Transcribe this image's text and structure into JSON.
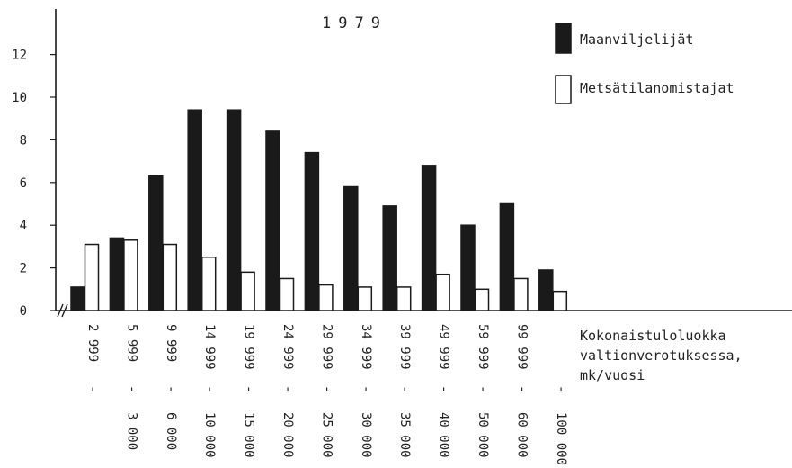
{
  "chart_data": {
    "type": "bar",
    "title": "1979",
    "ylim": [
      0,
      13
    ],
    "yticks": [
      0,
      2,
      4,
      6,
      8,
      10,
      12
    ],
    "grid": false,
    "legend_position": "top-right",
    "xlabel": [
      "Kokonaistuloluokka",
      "valtionverotuksessa,",
      "mk/vuosi"
    ],
    "categories": [
      {
        "low": "",
        "high": "2 999"
      },
      {
        "low": "3 000",
        "high": "5 999"
      },
      {
        "low": "6 000",
        "high": "9 999"
      },
      {
        "low": "10 000",
        "high": "14 999"
      },
      {
        "low": "15 000",
        "high": "19 999"
      },
      {
        "low": "20 000",
        "high": "24 999"
      },
      {
        "low": "25 000",
        "high": "29 999"
      },
      {
        "low": "30 000",
        "high": "34 999"
      },
      {
        "low": "35 000",
        "high": "39 999"
      },
      {
        "low": "40 000",
        "high": "49 999"
      },
      {
        "low": "50 000",
        "high": "59 999"
      },
      {
        "low": "60 000",
        "high": "99 999"
      },
      {
        "low": "100 000",
        "high": ""
      }
    ],
    "series": [
      {
        "name": "Maanviljelijät",
        "fill": "#1a1a1a",
        "values": [
          1.1,
          3.4,
          6.3,
          9.4,
          9.4,
          8.4,
          7.4,
          5.8,
          4.9,
          6.8,
          4.0,
          5.0,
          1.9
        ]
      },
      {
        "name": "Metsätilanomistajat",
        "fill": "#ffffff",
        "values": [
          3.1,
          3.3,
          3.1,
          2.5,
          1.8,
          1.5,
          1.2,
          1.1,
          1.1,
          1.7,
          1.0,
          1.5,
          0.9
        ]
      }
    ]
  }
}
